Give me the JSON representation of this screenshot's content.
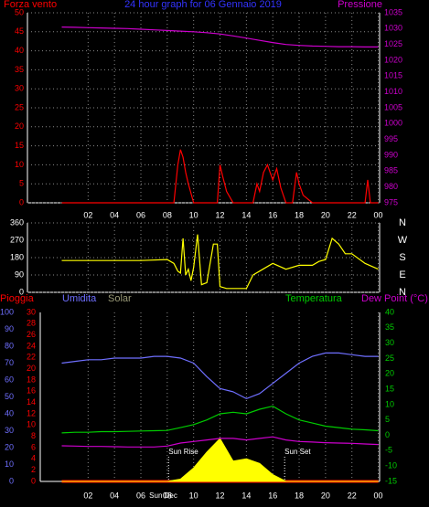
{
  "chart_data": [
    {
      "type": "line",
      "title": "24 hour graph for 06 Gennaio 2019",
      "x": [
        0,
        1,
        2,
        3,
        4,
        5,
        6,
        7,
        8,
        9,
        10,
        11,
        12,
        13,
        14,
        15,
        16,
        17,
        18,
        19,
        20,
        21,
        22,
        23,
        24
      ],
      "xlim": [
        -2.6,
        24.1
      ],
      "xticks": [
        {
          "value": 2,
          "label": "02"
        },
        {
          "value": 4,
          "label": "04"
        },
        {
          "value": 6,
          "label": "06"
        },
        {
          "value": 8,
          "label": "08"
        },
        10,
        12,
        14,
        16,
        18,
        20,
        22,
        {
          "value": 24,
          "label": "00"
        }
      ],
      "ylim": [
        0,
        50
      ],
      "yticks": [
        0,
        5,
        10,
        15,
        20,
        25,
        30,
        35,
        40,
        45,
        50
      ],
      "y2lim": [
        975,
        1035
      ],
      "y2ticks": [
        975,
        980,
        985,
        990,
        995,
        1000,
        1005,
        1010,
        1015,
        1020,
        1025,
        1030,
        1035
      ],
      "grid": true,
      "series": [
        {
          "name": "Forza vento",
          "color": "#ff0000",
          "x": [
            0,
            8.5,
            8.8,
            9,
            9.2,
            9.4,
            9.6,
            10,
            11.8,
            12,
            12.2,
            12.5,
            13,
            14.5,
            14.8,
            15,
            15.3,
            15.6,
            16,
            16.3,
            16.6,
            17,
            17.5,
            17.8,
            18,
            18.3,
            19,
            23,
            23.2,
            23.4,
            24
          ],
          "values": [
            0,
            0,
            10,
            14,
            12,
            8,
            5,
            0,
            0,
            10,
            7,
            3,
            0,
            0,
            5,
            3,
            8,
            10,
            6,
            9,
            4,
            0,
            0,
            8,
            5,
            2,
            0,
            0,
            6,
            0,
            0
          ]
        },
        {
          "name": "Pressione",
          "color": "#cc00cc",
          "axis": "y2",
          "values": [
            1030.5,
            1030.4,
            1030.3,
            1030.2,
            1030.1,
            1030,
            1029.8,
            1029.6,
            1029.4,
            1029.2,
            1029,
            1028.7,
            1028.3,
            1027.7,
            1027,
            1026.3,
            1025.6,
            1025,
            1024.7,
            1024.5,
            1024.4,
            1024.3,
            1024.3,
            1024.2,
            1024.2
          ]
        }
      ]
    },
    {
      "type": "line",
      "x": [
        0,
        2,
        4,
        6,
        8,
        8.5,
        8.8,
        9,
        9.2,
        9.4,
        9.6,
        9.8,
        10,
        10.3,
        10.6,
        11,
        11.5,
        11.8,
        12,
        12.5,
        13,
        14,
        14.5,
        15,
        16,
        17,
        18,
        19,
        19.5,
        20,
        20.5,
        21,
        21.5,
        22,
        23,
        24
      ],
      "xlim": [
        -2.6,
        24.1
      ],
      "ylim": [
        0,
        360
      ],
      "yticks": [
        0,
        90,
        180,
        270,
        360
      ],
      "y2lim": [
        0,
        360
      ],
      "y2ticks": [
        {
          "value": 360,
          "label": "N"
        },
        {
          "value": 270,
          "label": "W"
        },
        {
          "value": 180,
          "label": "S"
        },
        {
          "value": 90,
          "label": "E"
        },
        {
          "value": 0,
          "label": "N"
        }
      ],
      "grid": true,
      "series": [
        {
          "color": "#ffff00",
          "values": [
            165,
            165,
            165,
            165,
            170,
            150,
            110,
            100,
            280,
            90,
            120,
            60,
            130,
            300,
            40,
            50,
            250,
            250,
            30,
            20,
            20,
            20,
            90,
            110,
            150,
            120,
            140,
            140,
            160,
            170,
            280,
            250,
            200,
            200,
            150,
            120
          ]
        }
      ]
    },
    {
      "type": "line",
      "x": [
        0,
        1,
        2,
        3,
        4,
        5,
        6,
        7,
        8,
        9,
        10,
        11,
        12,
        13,
        14,
        15,
        16,
        17,
        18,
        19,
        20,
        21,
        22,
        23,
        24
      ],
      "xlim": [
        -2.6,
        24.1
      ],
      "xticks": [
        {
          "value": 2,
          "label": "02"
        },
        {
          "value": 4,
          "label": "04"
        },
        {
          "value": 6,
          "label": "06"
        },
        {
          "value": 8,
          "label": "08"
        },
        10,
        12,
        14,
        16,
        18,
        20,
        22,
        {
          "value": 24,
          "label": "00"
        }
      ],
      "ylim": [
        0,
        100
      ],
      "yticks": [
        0,
        10,
        20,
        30,
        40,
        50,
        60,
        70,
        80,
        90,
        100
      ],
      "y2lim": [
        0,
        30
      ],
      "y2ticks": [
        0,
        2,
        4,
        6,
        8,
        10,
        12,
        14,
        16,
        18,
        20,
        22,
        24,
        26,
        28,
        30
      ],
      "y3lim": [
        -15,
        40
      ],
      "y3ticks": [
        -15,
        -10,
        -5,
        0,
        5,
        10,
        15,
        20,
        25,
        30,
        35,
        40
      ],
      "y4lim": [
        0,
        1500
      ],
      "grid": true,
      "series": [
        {
          "name": "Pioggia",
          "color": "#ff0000",
          "axis": "y2",
          "values": [
            0,
            0,
            0,
            0,
            0,
            0,
            0,
            0,
            0,
            0,
            0,
            0,
            0,
            0,
            0,
            0,
            0,
            0,
            0,
            0,
            0,
            0,
            0,
            0,
            0
          ]
        },
        {
          "name": "Umidita",
          "color": "#6f6fff",
          "values": [
            70,
            71,
            72,
            72,
            73,
            73,
            73,
            74,
            74,
            73,
            70,
            62,
            55,
            53,
            49,
            52,
            58,
            64,
            70,
            74,
            76,
            76,
            75,
            74,
            74
          ]
        },
        {
          "name": "Solar",
          "color": "#ffff00",
          "axis": "y4",
          "values": [
            0,
            0,
            0,
            0,
            0,
            0,
            0,
            0,
            0,
            20,
            120,
            260,
            380,
            180,
            200,
            160,
            60,
            0,
            0,
            0,
            0,
            0,
            0,
            0,
            0
          ]
        },
        {
          "name": "Temperatura",
          "color": "#00cc00",
          "axis": "y3",
          "values": [
            0.8,
            1,
            1,
            1.2,
            1.2,
            1.3,
            1.4,
            1.5,
            1.6,
            2.5,
            3.5,
            5,
            7,
            7.5,
            7,
            8.5,
            9.5,
            7,
            5,
            4,
            3,
            2.5,
            2,
            1.8,
            1.5
          ]
        },
        {
          "name": "Dew Point (°C)",
          "color": "#cc00cc",
          "axis": "y3",
          "values": [
            -3.4,
            -3.5,
            -3.6,
            -3.6,
            -3.7,
            -3.8,
            -3.8,
            -3.8,
            -3.5,
            -2.5,
            -2,
            -1.5,
            -1,
            -1,
            -1.5,
            -1,
            -0.5,
            -1.5,
            -2,
            -2.2,
            -2.4,
            -2.5,
            -2.6,
            -2.8,
            -3
          ]
        }
      ],
      "annotations": [
        {
          "text": "Sun Rise",
          "x": 8.1
        },
        {
          "text": "Sun Set",
          "x": 16.9
        },
        {
          "text": "Sun Dec",
          "x": 7.7
        }
      ]
    }
  ]
}
